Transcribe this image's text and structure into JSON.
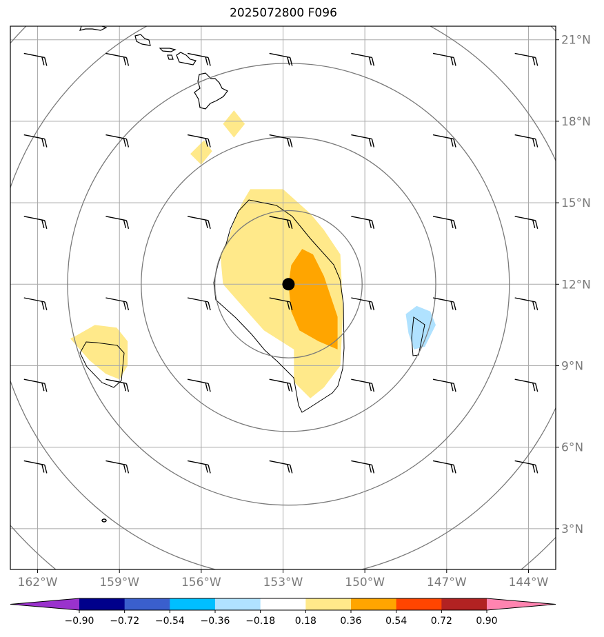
{
  "title": "2025072800 F096",
  "map": {
    "lon_range": [
      -163.0,
      -143.0
    ],
    "lat_range": [
      1.5,
      21.5
    ],
    "lon_ticks": [
      {
        "value": -162,
        "label": "162°W"
      },
      {
        "value": -159,
        "label": "159°W"
      },
      {
        "value": -156,
        "label": "156°W"
      },
      {
        "value": -153,
        "label": "153°W"
      },
      {
        "value": -150,
        "label": "150°W"
      },
      {
        "value": -147,
        "label": "147°W"
      },
      {
        "value": -144,
        "label": "144°W"
      }
    ],
    "lat_ticks": [
      {
        "value": 21,
        "label": "21°N"
      },
      {
        "value": 18,
        "label": "18°N"
      },
      {
        "value": 15,
        "label": "15°N"
      },
      {
        "value": 12,
        "label": "12°N"
      },
      {
        "value": 9,
        "label": "9°N"
      },
      {
        "value": 6,
        "label": "6°N"
      },
      {
        "value": 3,
        "label": "3°N"
      }
    ],
    "grid": true,
    "storm_center": {
      "lon": -152.8,
      "lat": 12.0
    },
    "range_rings_deg": [
      2.7,
      5.4,
      8.1,
      10.8,
      13.5
    ],
    "wind_barb_lons": [
      -162.5,
      -159.5,
      -156.5,
      -153.5,
      -150.5,
      -147.5,
      -144.5
    ],
    "wind_barb_lats": [
      20.5,
      17.5,
      14.5,
      11.5,
      8.5,
      5.5
    ]
  },
  "chart_data": {
    "type": "heatmap",
    "title": "2025072800 F096",
    "xlabel": "",
    "ylabel": "",
    "xlim": [
      -163.0,
      -143.0
    ],
    "ylim": [
      1.5,
      21.5
    ],
    "levels": [
      -0.9,
      -0.72,
      -0.54,
      -0.36,
      -0.18,
      0.18,
      0.36,
      0.54,
      0.72,
      0.9
    ],
    "colorbar_labels": [
      "−0.90",
      "−0.72",
      "−0.54",
      "−0.36",
      "−0.18",
      "0.18",
      "0.36",
      "0.54",
      "0.72",
      "0.90"
    ],
    "colors": [
      "#9a32cd",
      "#00008b",
      "#3a5fcd",
      "#00bfff",
      "#b0e2ff",
      "#ffffff",
      "#ffe98a",
      "#ffa500",
      "#ff4500",
      "#b22222",
      "#ff84b0"
    ],
    "regions": [
      {
        "name": "positive-0.18",
        "level": 0.18,
        "points": [
          [
            -154.2,
            15.5
          ],
          [
            -153.0,
            15.5
          ],
          [
            -152.0,
            14.6
          ],
          [
            -151.5,
            14.0
          ],
          [
            -150.9,
            13.1
          ],
          [
            -150.8,
            11.0
          ],
          [
            -150.9,
            9.0
          ],
          [
            -151.5,
            8.2
          ],
          [
            -152.0,
            7.8
          ],
          [
            -152.6,
            8.4
          ],
          [
            -152.6,
            9.6
          ],
          [
            -153.7,
            10.3
          ],
          [
            -154.5,
            11.2
          ],
          [
            -155.2,
            12.0
          ],
          [
            -155.3,
            13.1
          ],
          [
            -155.0,
            13.7
          ],
          [
            -154.8,
            14.3
          ],
          [
            -154.5,
            15.0
          ]
        ]
      },
      {
        "name": "positive-0.36",
        "level": 0.36,
        "points": [
          [
            -152.3,
            13.3
          ],
          [
            -151.9,
            13.1
          ],
          [
            -151.5,
            12.3
          ],
          [
            -151.0,
            10.8
          ],
          [
            -151.0,
            9.6
          ],
          [
            -151.7,
            9.9
          ],
          [
            -152.4,
            10.3
          ],
          [
            -152.7,
            11.0
          ],
          [
            -152.8,
            12.0
          ],
          [
            -152.7,
            12.7
          ]
        ]
      },
      {
        "name": "positive-0.18-west",
        "level": 0.18,
        "points": [
          [
            -160.6,
            10.1
          ],
          [
            -159.9,
            10.5
          ],
          [
            -159.1,
            10.4
          ],
          [
            -158.7,
            9.9
          ],
          [
            -158.7,
            9.0
          ],
          [
            -159.0,
            8.5
          ],
          [
            -159.5,
            8.7
          ],
          [
            -160.1,
            9.2
          ],
          [
            -160.8,
            10.0
          ]
        ]
      },
      {
        "name": "negative-0.18-east",
        "level": -0.18,
        "points": [
          [
            -148.1,
            11.2
          ],
          [
            -147.6,
            11.0
          ],
          [
            -147.4,
            10.5
          ],
          [
            -147.8,
            9.7
          ],
          [
            -148.2,
            9.6
          ],
          [
            -148.4,
            10.2
          ],
          [
            -148.5,
            10.9
          ]
        ]
      },
      {
        "name": "positive-0.18-north",
        "level": 0.18,
        "points": [
          [
            -155.9,
            17.3
          ],
          [
            -155.6,
            16.9
          ],
          [
            -156.0,
            16.4
          ],
          [
            -156.4,
            16.8
          ]
        ]
      },
      {
        "name": "positive-0.18-far-north",
        "level": 0.18,
        "points": [
          [
            -154.8,
            18.4
          ],
          [
            -154.4,
            17.9
          ],
          [
            -154.8,
            17.4
          ],
          [
            -155.2,
            17.9
          ]
        ]
      }
    ]
  }
}
